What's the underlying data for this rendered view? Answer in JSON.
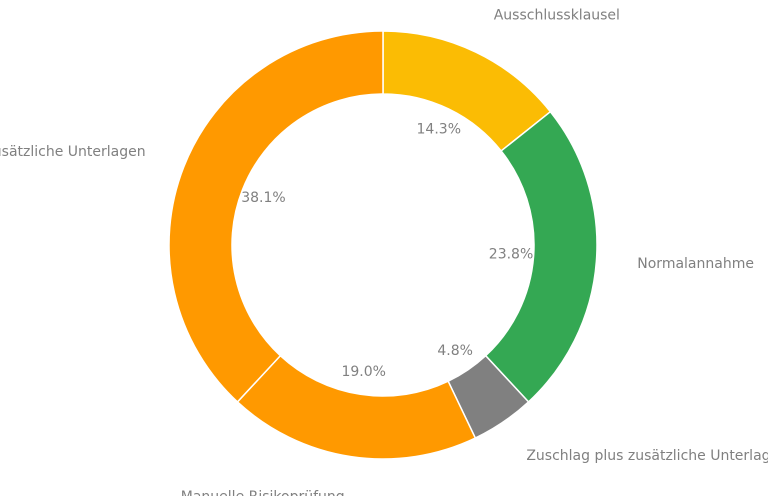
{
  "chart_data": {
    "type": "pie",
    "donut": true,
    "title": "",
    "start_angle_deg": 90,
    "direction": "clockwise",
    "slices": [
      {
        "label": "Ausschlussklausel",
        "value": 14.3,
        "pct_label": "14.3%",
        "color": "#fbbc04"
      },
      {
        "label": "Normalannahme",
        "value": 23.8,
        "pct_label": "23.8%",
        "color": "#34a853"
      },
      {
        "label": "Zuschlag plus zusätzliche Unterlagen",
        "value": 4.8,
        "pct_label": "4.8%",
        "color": "#808080"
      },
      {
        "label": "Manuelle Risikoprüfung",
        "value": 19.0,
        "pct_label": "19.0%",
        "color": "#ff9900"
      },
      {
        "label": "Zusätzliche Unterlagen",
        "value": 38.1,
        "pct_label": "38.1%",
        "color": "#ff9900"
      }
    ]
  }
}
